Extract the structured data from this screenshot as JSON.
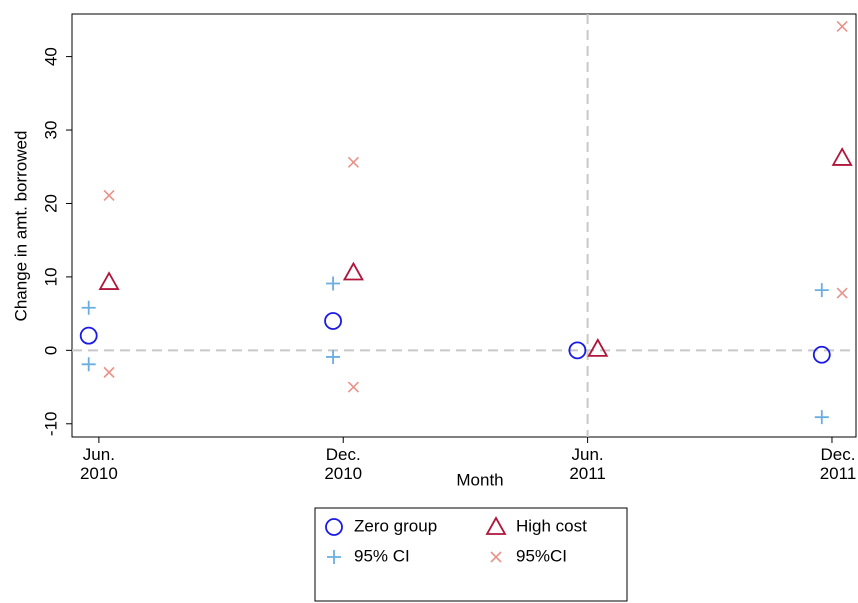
{
  "chart_data": {
    "type": "scatter",
    "x_label": "Month",
    "y_label": "Change in amt. borrowed",
    "xlim": [
      604.34,
      623.59
    ],
    "ylim": [
      -11.8,
      45.8
    ],
    "xticks": [
      {
        "value": 605,
        "label": "Jun.\n2010"
      },
      {
        "value": 611,
        "label": "Dec.\n2010"
      },
      {
        "value": 617,
        "label": "Jun.\n2011"
      },
      {
        "value": 623,
        "label": "Dec.\n2011"
      }
    ],
    "yticks": [
      -10,
      0,
      10,
      20,
      30,
      40
    ],
    "xline": 617,
    "yline": 0,
    "series": [
      {
        "name": "Zero group",
        "marker": "circle",
        "color": "#1a1ae6",
        "x": [
          604.75,
          610.75,
          616.75,
          622.75
        ],
        "values": [
          2.0,
          4.0,
          0.0,
          -0.6
        ]
      },
      {
        "name": "High cost",
        "marker": "triangle",
        "color": "#b0163b",
        "x": [
          605.25,
          611.25,
          617.25,
          623.25
        ],
        "values": [
          9.3,
          10.6,
          0.2,
          26.2
        ]
      },
      {
        "name": "95% CI",
        "marker": "plus",
        "color": "#6aaee0",
        "x": [
          604.75,
          610.75,
          616.75,
          622.75,
          604.75,
          610.75,
          616.75,
          622.75
        ],
        "values": [
          5.8,
          9.1,
          null,
          8.2,
          -1.9,
          -0.9,
          null,
          -9.1
        ]
      },
      {
        "name": "95%CI",
        "marker": "x",
        "color": "#e8938a",
        "x": [
          605.25,
          611.25,
          617.25,
          623.25,
          605.25,
          611.25,
          617.25,
          623.25
        ],
        "values": [
          21.1,
          25.6,
          null,
          7.8,
          -3.0,
          -5.0,
          null,
          44.1
        ]
      }
    ]
  }
}
